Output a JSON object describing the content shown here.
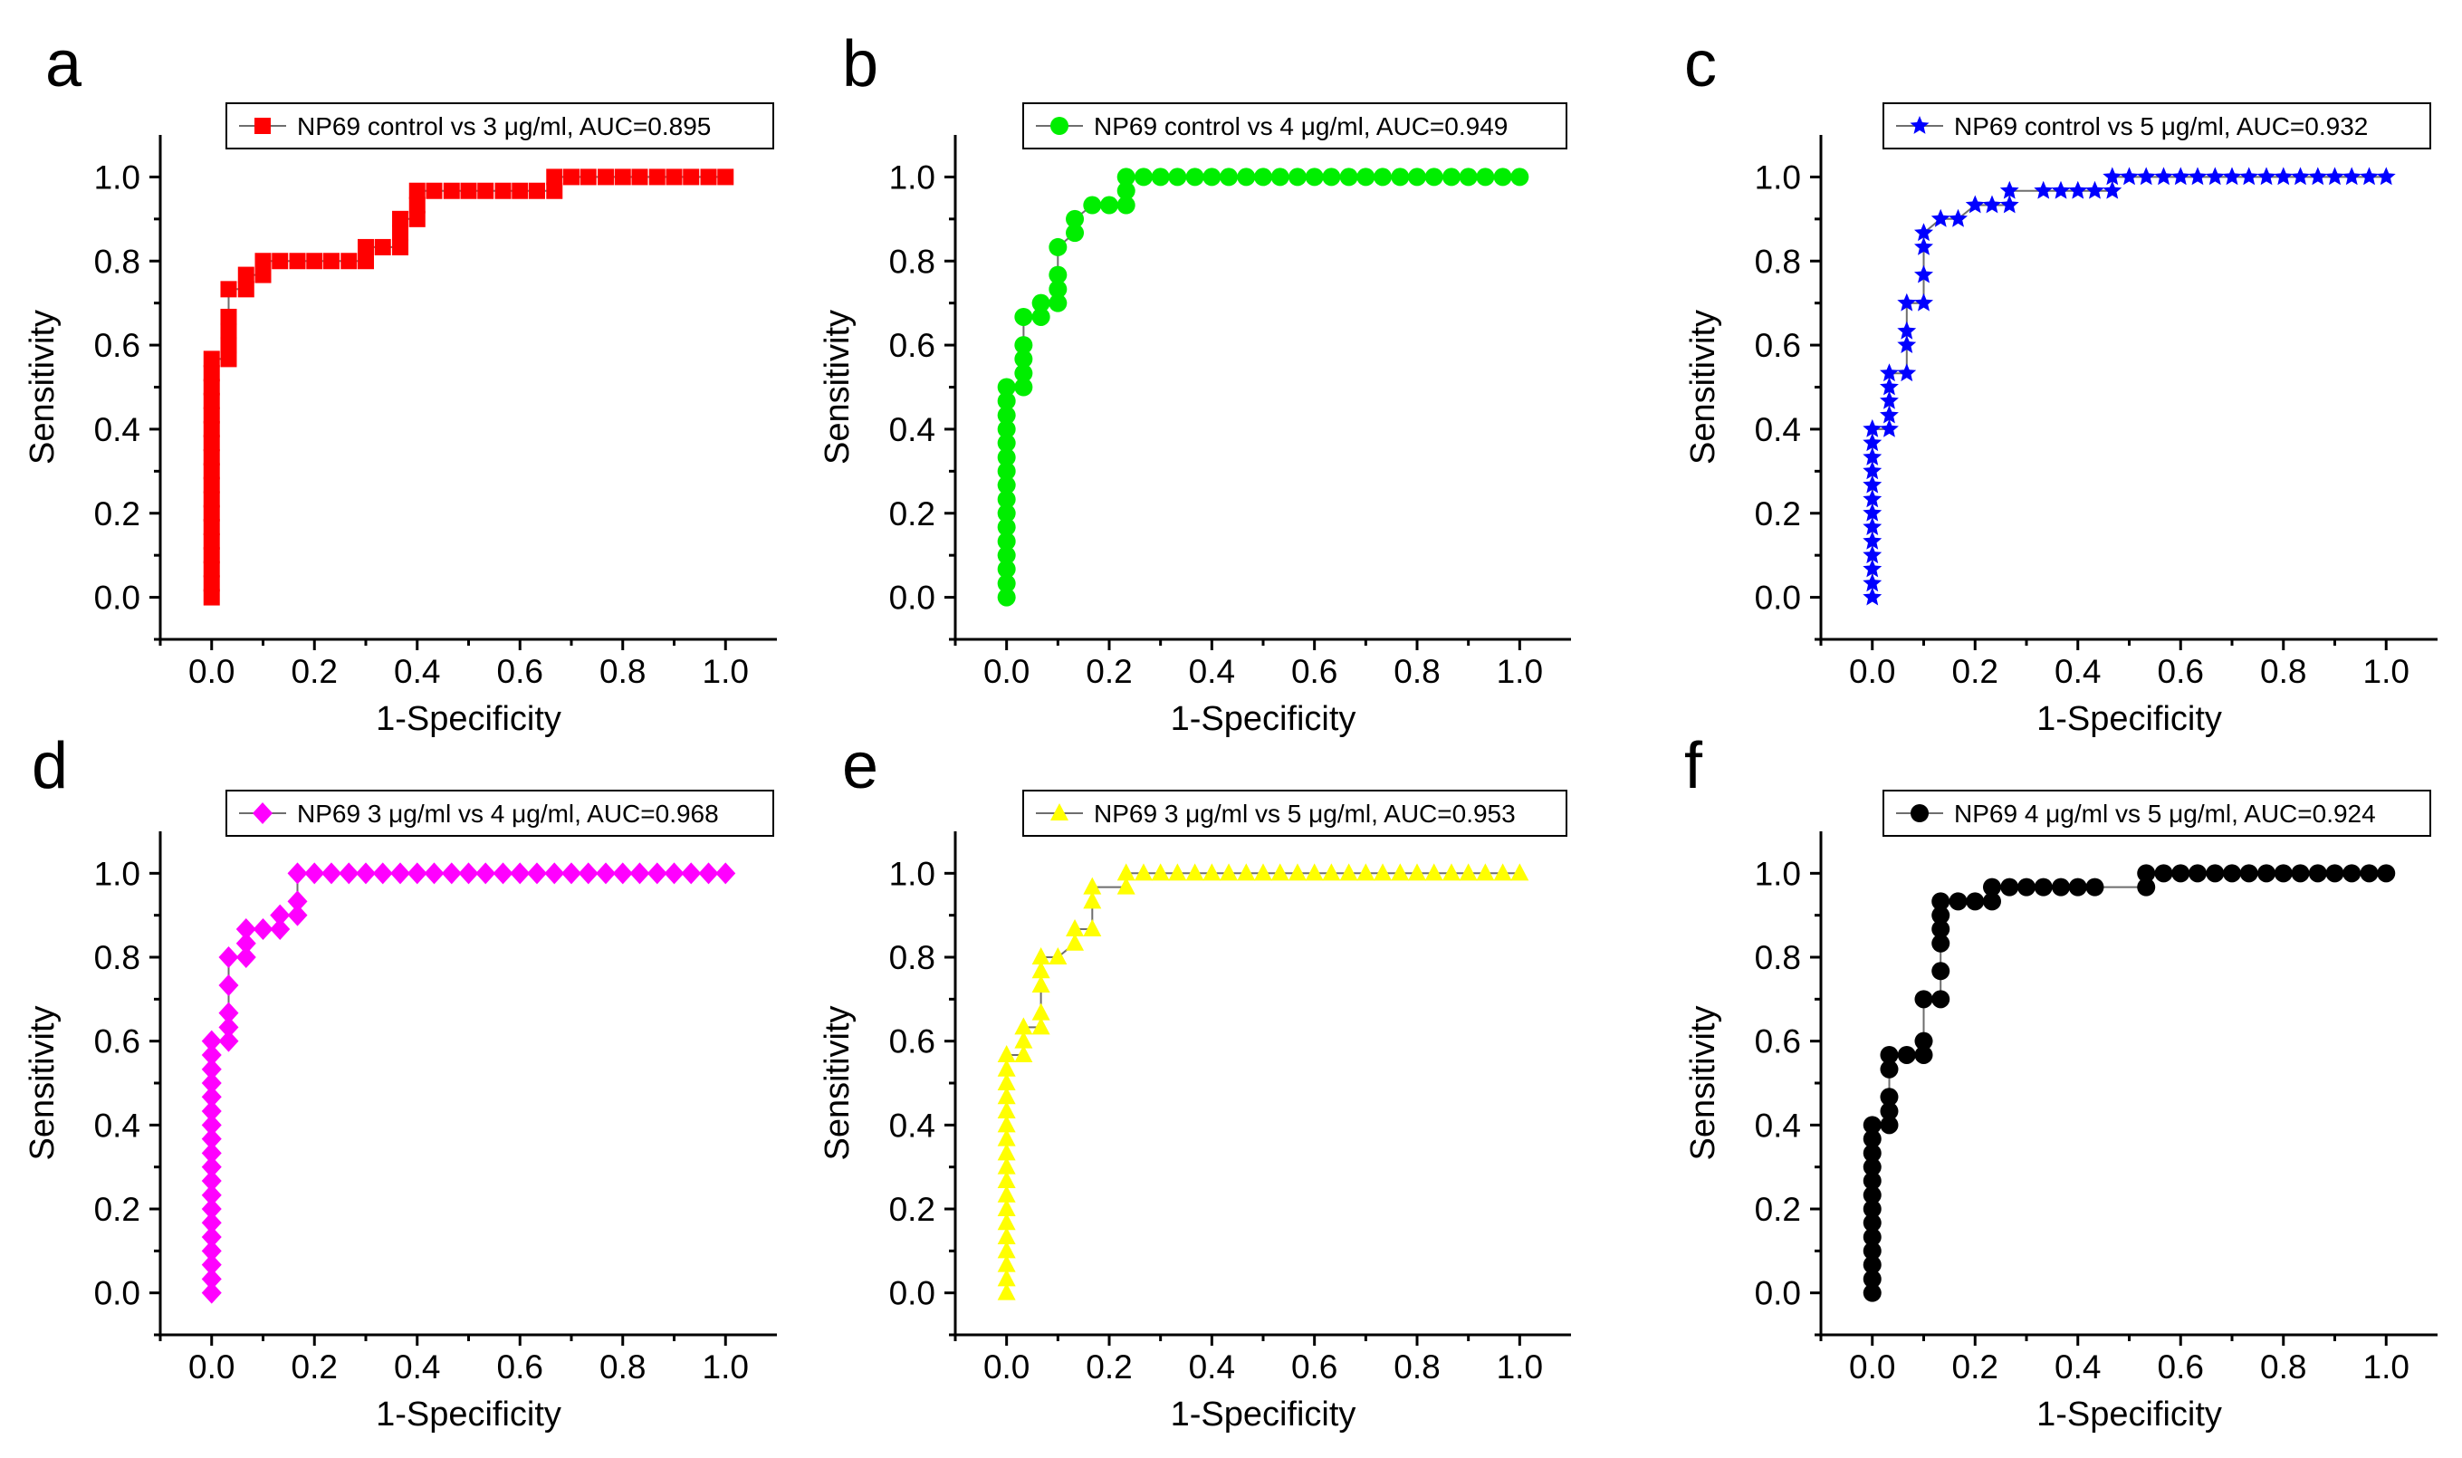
{
  "figure": {
    "panels_note": "six ROC curve panels a-f"
  },
  "chart_data": [
    {
      "type": "line",
      "panel": "a",
      "marker": "square",
      "color": "#ff0000",
      "legend": "NP69 control vs 3 μg/ml, AUC=0.895",
      "xlabel": "1-Specificity",
      "ylabel": "Sensitivity",
      "xlim": [
        -0.1,
        1.1
      ],
      "ylim": [
        -0.1,
        1.1
      ],
      "x_ticks": [
        "0.0",
        "0.2",
        "0.4",
        "0.6",
        "0.8",
        "1.0"
      ],
      "y_ticks": [
        "0.0",
        "0.2",
        "0.4",
        "0.6",
        "0.8",
        "1.0"
      ],
      "fpr": [
        0,
        0,
        0,
        0,
        0,
        0,
        0,
        0,
        0,
        0,
        0,
        0,
        0,
        0,
        0,
        0,
        0,
        0,
        0.033,
        0.033,
        0.033,
        0.033,
        0.033,
        0.067,
        0.067,
        0.1,
        0.1,
        0.133,
        0.167,
        0.2,
        0.233,
        0.267,
        0.3,
        0.3,
        0.333,
        0.367,
        0.367,
        0.367,
        0.4,
        0.4,
        0.4,
        0.433,
        0.467,
        0.5,
        0.533,
        0.567,
        0.6,
        0.633,
        0.667,
        0.667,
        0.7,
        0.733,
        0.767,
        0.8,
        0.833,
        0.867,
        0.9,
        0.933,
        0.967,
        1.0
      ],
      "tpr": [
        0,
        0.033,
        0.067,
        0.1,
        0.133,
        0.167,
        0.2,
        0.233,
        0.267,
        0.3,
        0.333,
        0.367,
        0.4,
        0.433,
        0.467,
        0.5,
        0.533,
        0.567,
        0.567,
        0.6,
        0.633,
        0.667,
        0.733,
        0.733,
        0.767,
        0.767,
        0.8,
        0.8,
        0.8,
        0.8,
        0.8,
        0.8,
        0.8,
        0.833,
        0.833,
        0.833,
        0.867,
        0.9,
        0.9,
        0.933,
        0.967,
        0.967,
        0.967,
        0.967,
        0.967,
        0.967,
        0.967,
        0.967,
        0.967,
        1.0,
        1.0,
        1.0,
        1.0,
        1.0,
        1.0,
        1.0,
        1.0,
        1.0,
        1.0,
        1.0
      ]
    },
    {
      "type": "line",
      "panel": "b",
      "marker": "circle",
      "color": "#00ee00",
      "legend": "NP69 control vs 4 μg/ml, AUC=0.949",
      "xlabel": "1-Specificity",
      "ylabel": "Sensitivity",
      "xlim": [
        -0.1,
        1.1
      ],
      "ylim": [
        -0.1,
        1.1
      ],
      "x_ticks": [
        "0.0",
        "0.2",
        "0.4",
        "0.6",
        "0.8",
        "1.0"
      ],
      "y_ticks": [
        "0.0",
        "0.2",
        "0.4",
        "0.6",
        "0.8",
        "1.0"
      ],
      "fpr": [
        0,
        0,
        0,
        0,
        0,
        0,
        0,
        0,
        0,
        0,
        0,
        0,
        0,
        0,
        0,
        0,
        0.033,
        0.033,
        0.033,
        0.033,
        0.033,
        0.067,
        0.067,
        0.1,
        0.1,
        0.1,
        0.1,
        0.133,
        0.133,
        0.167,
        0.2,
        0.233,
        0.233,
        0.233,
        0.267,
        0.3,
        0.333,
        0.367,
        0.4,
        0.433,
        0.467,
        0.5,
        0.533,
        0.567,
        0.6,
        0.633,
        0.667,
        0.7,
        0.733,
        0.767,
        0.8,
        0.833,
        0.867,
        0.9,
        0.933,
        0.967,
        1.0
      ],
      "tpr": [
        0,
        0.033,
        0.067,
        0.1,
        0.133,
        0.167,
        0.2,
        0.233,
        0.267,
        0.3,
        0.333,
        0.367,
        0.4,
        0.433,
        0.467,
        0.5,
        0.5,
        0.533,
        0.567,
        0.6,
        0.667,
        0.667,
        0.7,
        0.7,
        0.733,
        0.767,
        0.833,
        0.867,
        0.9,
        0.933,
        0.933,
        0.933,
        0.967,
        1.0,
        1.0,
        1.0,
        1.0,
        1.0,
        1.0,
        1.0,
        1.0,
        1.0,
        1.0,
        1.0,
        1.0,
        1.0,
        1.0,
        1.0,
        1.0,
        1.0,
        1.0,
        1.0,
        1.0,
        1.0,
        1.0,
        1.0,
        1.0
      ]
    },
    {
      "type": "line",
      "panel": "c",
      "marker": "star",
      "color": "#0000ff",
      "legend": "NP69 control vs  5 μg/ml, AUC=0.932",
      "xlabel": "1-Specificity",
      "ylabel": "Sensitivity",
      "xlim": [
        -0.1,
        1.1
      ],
      "ylim": [
        -0.1,
        1.1
      ],
      "x_ticks": [
        "0.0",
        "0.2",
        "0.4",
        "0.6",
        "0.8",
        "1.0"
      ],
      "y_ticks": [
        "0.0",
        "0.2",
        "0.4",
        "0.6",
        "0.8",
        "1.0"
      ],
      "fpr": [
        0,
        0,
        0,
        0,
        0,
        0,
        0,
        0,
        0,
        0,
        0,
        0,
        0,
        0.033,
        0.033,
        0.033,
        0.033,
        0.033,
        0.067,
        0.067,
        0.067,
        0.067,
        0.1,
        0.1,
        0.1,
        0.1,
        0.133,
        0.167,
        0.2,
        0.233,
        0.267,
        0.267,
        0.333,
        0.367,
        0.4,
        0.433,
        0.467,
        0.467,
        0.5,
        0.533,
        0.567,
        0.6,
        0.633,
        0.667,
        0.7,
        0.733,
        0.767,
        0.8,
        0.833,
        0.867,
        0.9,
        0.933,
        0.967,
        1.0
      ],
      "tpr": [
        0,
        0.033,
        0.067,
        0.1,
        0.133,
        0.167,
        0.2,
        0.233,
        0.267,
        0.3,
        0.333,
        0.367,
        0.4,
        0.4,
        0.433,
        0.467,
        0.5,
        0.533,
        0.533,
        0.6,
        0.633,
        0.7,
        0.7,
        0.767,
        0.833,
        0.867,
        0.9,
        0.9,
        0.933,
        0.933,
        0.933,
        0.967,
        0.967,
        0.967,
        0.967,
        0.967,
        0.967,
        1.0,
        1.0,
        1.0,
        1.0,
        1.0,
        1.0,
        1.0,
        1.0,
        1.0,
        1.0,
        1.0,
        1.0,
        1.0,
        1.0,
        1.0,
        1.0,
        1.0
      ]
    },
    {
      "type": "line",
      "panel": "d",
      "marker": "diamond",
      "color": "#ff00ff",
      "legend": "NP69 3 μg/ml vs 4 μg/ml, AUC=0.968",
      "xlabel": "1-Specificity",
      "ylabel": "Sensitivity",
      "xlim": [
        -0.1,
        1.1
      ],
      "ylim": [
        -0.1,
        1.1
      ],
      "x_ticks": [
        "0.0",
        "0.2",
        "0.4",
        "0.6",
        "0.8",
        "1.0"
      ],
      "y_ticks": [
        "0.0",
        "0.2",
        "0.4",
        "0.6",
        "0.8",
        "1.0"
      ],
      "fpr": [
        0,
        0,
        0,
        0,
        0,
        0,
        0,
        0,
        0,
        0,
        0,
        0,
        0,
        0,
        0,
        0,
        0,
        0,
        0,
        0.033,
        0.033,
        0.033,
        0.033,
        0.033,
        0.067,
        0.067,
        0.067,
        0.1,
        0.133,
        0.133,
        0.167,
        0.167,
        0.167,
        0.2,
        0.233,
        0.267,
        0.3,
        0.333,
        0.367,
        0.4,
        0.433,
        0.467,
        0.5,
        0.533,
        0.567,
        0.6,
        0.633,
        0.667,
        0.7,
        0.733,
        0.767,
        0.8,
        0.833,
        0.867,
        0.9,
        0.933,
        0.967,
        1.0
      ],
      "tpr": [
        0,
        0.033,
        0.067,
        0.1,
        0.133,
        0.167,
        0.2,
        0.233,
        0.267,
        0.3,
        0.333,
        0.367,
        0.4,
        0.433,
        0.467,
        0.5,
        0.533,
        0.567,
        0.6,
        0.6,
        0.633,
        0.667,
        0.733,
        0.8,
        0.8,
        0.833,
        0.867,
        0.867,
        0.867,
        0.9,
        0.9,
        0.933,
        1.0,
        1.0,
        1.0,
        1.0,
        1.0,
        1.0,
        1.0,
        1.0,
        1.0,
        1.0,
        1.0,
        1.0,
        1.0,
        1.0,
        1.0,
        1.0,
        1.0,
        1.0,
        1.0,
        1.0,
        1.0,
        1.0,
        1.0,
        1.0,
        1.0,
        1.0
      ]
    },
    {
      "type": "line",
      "panel": "e",
      "marker": "triangle",
      "color": "#ffff00",
      "legend": "NP69 3 μg/ml vs 5 μg/ml, AUC=0.953",
      "xlabel": "1-Specificity",
      "ylabel": "Sensitivity",
      "xlim": [
        -0.1,
        1.1
      ],
      "ylim": [
        -0.1,
        1.1
      ],
      "x_ticks": [
        "0.0",
        "0.2",
        "0.4",
        "0.6",
        "0.8",
        "1.0"
      ],
      "y_ticks": [
        "0.0",
        "0.2",
        "0.4",
        "0.6",
        "0.8",
        "1.0"
      ],
      "fpr": [
        0,
        0,
        0,
        0,
        0,
        0,
        0,
        0,
        0,
        0,
        0,
        0,
        0,
        0,
        0,
        0,
        0,
        0,
        0.033,
        0.033,
        0.033,
        0.067,
        0.067,
        0.067,
        0.067,
        0.067,
        0.1,
        0.133,
        0.133,
        0.167,
        0.167,
        0.167,
        0.233,
        0.233,
        0.267,
        0.3,
        0.333,
        0.367,
        0.4,
        0.433,
        0.467,
        0.5,
        0.533,
        0.567,
        0.6,
        0.633,
        0.667,
        0.7,
        0.733,
        0.767,
        0.8,
        0.833,
        0.867,
        0.9,
        0.933,
        0.967,
        1.0
      ],
      "tpr": [
        0,
        0.033,
        0.067,
        0.1,
        0.133,
        0.167,
        0.2,
        0.233,
        0.267,
        0.3,
        0.333,
        0.367,
        0.4,
        0.433,
        0.467,
        0.5,
        0.533,
        0.567,
        0.567,
        0.6,
        0.633,
        0.633,
        0.667,
        0.733,
        0.767,
        0.8,
        0.8,
        0.833,
        0.867,
        0.867,
        0.933,
        0.967,
        0.967,
        1.0,
        1.0,
        1.0,
        1.0,
        1.0,
        1.0,
        1.0,
        1.0,
        1.0,
        1.0,
        1.0,
        1.0,
        1.0,
        1.0,
        1.0,
        1.0,
        1.0,
        1.0,
        1.0,
        1.0,
        1.0,
        1.0,
        1.0,
        1.0
      ]
    },
    {
      "type": "line",
      "panel": "f",
      "marker": "circle",
      "color": "#000000",
      "legend": "NP69 4 μg/ml vs 5 μg/ml, AUC=0.924",
      "xlabel": "1-Specificity",
      "ylabel": "Sensitivity",
      "xlim": [
        -0.1,
        1.1
      ],
      "ylim": [
        -0.1,
        1.1
      ],
      "x_ticks": [
        "0.0",
        "0.2",
        "0.4",
        "0.6",
        "0.8",
        "1.0"
      ],
      "y_ticks": [
        "0.0",
        "0.2",
        "0.4",
        "0.6",
        "0.8",
        "1.0"
      ],
      "fpr": [
        0,
        0,
        0,
        0,
        0,
        0,
        0,
        0,
        0,
        0,
        0,
        0,
        0,
        0.033,
        0.033,
        0.033,
        0.033,
        0.033,
        0.067,
        0.1,
        0.1,
        0.1,
        0.133,
        0.133,
        0.133,
        0.133,
        0.133,
        0.133,
        0.167,
        0.2,
        0.233,
        0.233,
        0.267,
        0.3,
        0.333,
        0.367,
        0.4,
        0.433,
        0.533,
        0.533,
        0.567,
        0.6,
        0.633,
        0.667,
        0.7,
        0.733,
        0.767,
        0.8,
        0.833,
        0.867,
        0.9,
        0.933,
        0.967,
        1.0
      ],
      "tpr": [
        0,
        0.033,
        0.067,
        0.1,
        0.133,
        0.167,
        0.2,
        0.233,
        0.267,
        0.3,
        0.333,
        0.367,
        0.4,
        0.4,
        0.433,
        0.467,
        0.533,
        0.567,
        0.567,
        0.567,
        0.6,
        0.7,
        0.7,
        0.767,
        0.833,
        0.867,
        0.9,
        0.933,
        0.933,
        0.933,
        0.933,
        0.967,
        0.967,
        0.967,
        0.967,
        0.967,
        0.967,
        0.967,
        0.967,
        1.0,
        1.0,
        1.0,
        1.0,
        1.0,
        1.0,
        1.0,
        1.0,
        1.0,
        1.0,
        1.0,
        1.0,
        1.0,
        1.0,
        1.0
      ]
    }
  ]
}
